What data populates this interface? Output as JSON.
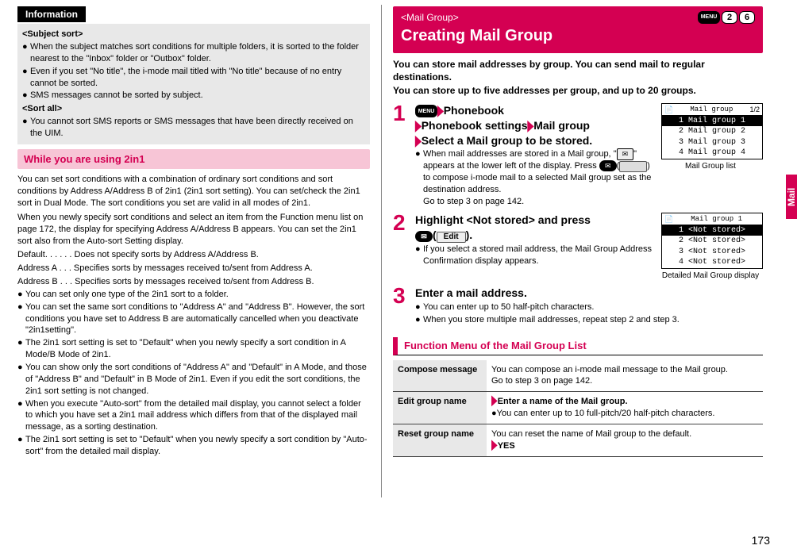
{
  "left": {
    "info_label": "Information",
    "subject_sort": "<Subject sort>",
    "subject_bullets": [
      "When the subject matches sort conditions for multiple folders, it is sorted to the folder nearest to the \"Inbox\" folder or \"Outbox\" folder.",
      "Even if you set \"No title\", the i-mode mail titled with \"No title\" because of no entry cannot be sorted.",
      "SMS messages cannot be sorted by subject."
    ],
    "sort_all": "<Sort all>",
    "sort_all_bullets": [
      "You cannot sort SMS reports or SMS messages that have been directly received on the UIM."
    ],
    "pink_header": "While you are using 2in1",
    "para1": "You can set sort conditions with a combination of ordinary sort conditions and sort conditions by Address A/Address B of 2in1 (2in1 sort setting). You can set/check the 2in1 sort in Dual Mode. The sort conditions you set are valid in all modes of 2in1.",
    "para2": "When you newly specify sort conditions and select an item from the Function menu list on page 172, the display for specifying Address A/Address B appears. You can set the 2in1 sort also from the Auto-sort Setting display.",
    "d_default": "Default. . . . . . Does not specify sorts by Address A/Address B.",
    "d_a": "Address A . . . Specifies sorts by messages received to/sent from Address A.",
    "d_b": "Address B . . . Specifies sorts by messages received to/sent from Address B.",
    "body_bullets": [
      "You can set only one type of the 2in1 sort to a folder.",
      "You can set the same sort conditions to \"Address A\" and \"Address B\". However, the sort conditions you have set to Address B are automatically cancelled when you deactivate \"2in1setting\".",
      "The 2in1 sort setting is set to \"Default\" when you newly specify a sort condition in A Mode/B Mode of 2in1.",
      "You can show only the sort conditions of \"Address A\" and \"Default\" in A Mode, and those of \"Address B\" and \"Default\" in B Mode of 2in1. Even if you edit the sort conditions, the 2in1 sort setting is not changed.",
      "When you execute \"Auto-sort\" from the detailed mail display, you cannot select a folder to which you have set a 2in1 mail address which differs from that of the displayed mail message, as a sorting destination.",
      "The 2in1 sort setting is set to \"Default\" when you newly specify a sort condition by \"Auto-sort\" from the detailed mail display."
    ]
  },
  "right": {
    "section_tag": "<Mail Group>",
    "keys": [
      "MENU",
      "2",
      "6"
    ],
    "title": "Creating Mail Group",
    "intro1": "You can store mail addresses by group. You can send mail to regular destinations.",
    "intro2": "You can store up to five addresses per group, and up to 20 groups.",
    "step1": {
      "menu_key": "MENU",
      "l1a": "Phonebook",
      "l2a": "Phonebook settings",
      "l2b": "Mail group",
      "l3": "Select a Mail group to be stored.",
      "b1a": "When mail addresses are stored in a Mail group,",
      "b1b": "\"",
      "b1c": "\" appears at the lower left of the display. Press ",
      "b1d": "(",
      "b1e": ") to compose i-mode mail to a selected Mail group set as the destination address.",
      "b1f": "Go to step 3 on page 142.",
      "phone": {
        "title": "Mail group",
        "page": "1/2",
        "rows": [
          "Mail group 1",
          "Mail group 2",
          "Mail group 3",
          "Mail group 4"
        ],
        "caption": "Mail Group list"
      }
    },
    "step2": {
      "l1a": "Highlight <Not stored> and press",
      "l1b": "(",
      "l1c": ").",
      "edit_label": "Edit",
      "b1": "If you select a stored mail address, the Mail Group Address Confirmation display appears.",
      "phone": {
        "title": "Mail group 1",
        "rows": [
          "<Not stored>",
          "<Not stored>",
          "<Not stored>",
          "<Not stored>"
        ],
        "caption": "Detailed Mail Group display"
      }
    },
    "step3": {
      "l1": "Enter a mail address.",
      "b1": "You can enter up to 50 half-pitch characters.",
      "b2": "When you store multiple mail addresses, repeat step 2 and step 3."
    },
    "func_title": "Function Menu of the Mail Group List",
    "func": [
      {
        "name": "Compose message",
        "d1": "You can compose an i-mode mail message to the Mail group.",
        "d2": "Go to step 3 on page 142."
      },
      {
        "name": "Edit group name",
        "d1": "Enter a name of the Mail group.",
        "d2": "You can enter up to 10 full-pitch/20 half-pitch characters."
      },
      {
        "name": "Reset group name",
        "d1": "You can reset the name of Mail group to the default.",
        "d2": "YES"
      }
    ],
    "side": "Mail",
    "pagenum": "173"
  }
}
